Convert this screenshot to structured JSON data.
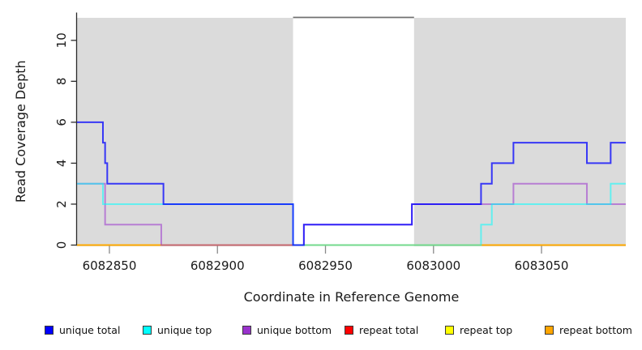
{
  "chart_data": {
    "type": "line",
    "subtype": "step-after-coverage",
    "title": "",
    "xlabel": "Coordinate in Reference Genome",
    "ylabel": "Read Coverage Depth",
    "xlim": [
      6082835,
      6083089
    ],
    "ylim": [
      0,
      11.1
    ],
    "x_ticks": [
      6082850,
      6082900,
      6082950,
      6083000,
      6083050
    ],
    "y_ticks": [
      0,
      2,
      4,
      6,
      8,
      10
    ],
    "grid": false,
    "background_regions": [
      {
        "name": "shaded-left",
        "x0": 6082835,
        "x1": 6082935,
        "fill": "#dbdbdb"
      },
      {
        "name": "shaded-right",
        "x0": 6082991,
        "x1": 6083089,
        "fill": "#dbdbdb"
      }
    ],
    "gap_overline": {
      "x0": 6082935,
      "x1": 6082991,
      "y": 11.1,
      "color": "#707070"
    },
    "series": [
      {
        "name": "repeat total",
        "color": "#ff0000",
        "alpha": 0.85,
        "points": [
          [
            6082835,
            0
          ],
          [
            6083089,
            0
          ]
        ]
      },
      {
        "name": "repeat top",
        "color": "#ffff00",
        "alpha": 0.7,
        "points": [
          [
            6082835,
            0
          ],
          [
            6083089,
            0
          ]
        ]
      },
      {
        "name": "repeat bottom",
        "color": "#ffa500",
        "alpha": 0.8,
        "points": [
          [
            6082835,
            0
          ],
          [
            6083089,
            0
          ]
        ]
      },
      {
        "name": "unique bottom",
        "color": "#9932cc",
        "alpha": 0.55,
        "points": [
          [
            6082835,
            3
          ],
          [
            6082848,
            1
          ],
          [
            6082874,
            0
          ],
          [
            6082940,
            1
          ],
          [
            6082990,
            2
          ],
          [
            6083037,
            3
          ],
          [
            6083071,
            2
          ],
          [
            6083089,
            2
          ]
        ]
      },
      {
        "name": "unique top",
        "color": "#00ffff",
        "alpha": 0.55,
        "points": [
          [
            6082835,
            3
          ],
          [
            6082847,
            2
          ],
          [
            6082935,
            0
          ],
          [
            6083022,
            1
          ],
          [
            6083027,
            2
          ],
          [
            6083082,
            3
          ],
          [
            6083089,
            3
          ]
        ]
      },
      {
        "name": "unique total",
        "color": "#0000ff",
        "alpha": 0.75,
        "points": [
          [
            6082835,
            6
          ],
          [
            6082847,
            5
          ],
          [
            6082848,
            4
          ],
          [
            6082849,
            3
          ],
          [
            6082875,
            2
          ],
          [
            6082935,
            0
          ],
          [
            6082940,
            1
          ],
          [
            6082990,
            2
          ],
          [
            6083022,
            3
          ],
          [
            6083027,
            4
          ],
          [
            6083037,
            5
          ],
          [
            6083071,
            4
          ],
          [
            6083082,
            5
          ],
          [
            6083089,
            5
          ]
        ]
      }
    ],
    "legend": [
      {
        "label": "unique total",
        "color": "#0000ff"
      },
      {
        "label": "unique top",
        "color": "#00ffff"
      },
      {
        "label": "unique bottom",
        "color": "#9932cc"
      },
      {
        "label": "repeat total",
        "color": "#ff0000"
      },
      {
        "label": "repeat top",
        "color": "#ffff00"
      },
      {
        "label": "repeat bottom",
        "color": "#ffa500"
      }
    ],
    "legend_position": "bottom"
  },
  "colors": {
    "axis": "#2b2b2b",
    "x_tick": "#8a8a8a",
    "plot_shade": "#dbdbdb",
    "text": "#1a1a1a"
  }
}
